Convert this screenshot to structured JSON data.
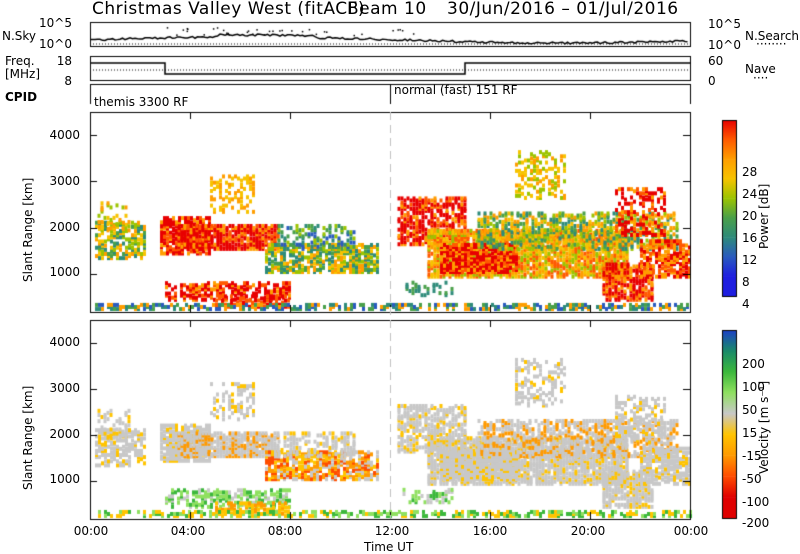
{
  "header": {
    "title": "Christmas Valley West (fitACF)",
    "beam": "Beam 10",
    "date_range": "30/Jun/2016 – 01/Jul/2016"
  },
  "sky_panel": {
    "left_label": "N.Sky",
    "left_ticks": [
      "10^5",
      "10^0"
    ],
    "right_label": "N.Search",
    "right_ticks": [
      "10^5",
      "10^0"
    ],
    "legend_line": "········"
  },
  "freq_panel": {
    "left_label_1": "Freq.",
    "left_label_2": "[MHz]",
    "left_ticks": [
      "18",
      "8"
    ],
    "right_label": "Nave",
    "right_ticks": [
      "60",
      "0"
    ],
    "legend_line": "····"
  },
  "cpid": {
    "label": "CPID",
    "mode_1": "themis 3300 RF",
    "mode_2": "normal (fast) 151 RF"
  },
  "chart_data": [
    {
      "type": "heatmap",
      "name": "power",
      "ylabel": "Slant Range [km]",
      "yticks": [
        1000,
        2000,
        3000,
        4000
      ],
      "ylim": [
        180,
        4500
      ],
      "xlim_hours": [
        0,
        24
      ],
      "colorbar_label": "Power [dB]",
      "colorbar_ticks": [
        "28",
        "24",
        "20",
        "16",
        "12",
        "8",
        "4"
      ],
      "colorbar_colors": [
        "#e80000",
        "#ff5a00",
        "#ff9e00",
        "#f7c300",
        "#9cc400",
        "#4aa04a",
        "#2e8b7a",
        "#2a5bbf",
        "#1e1ee0"
      ]
    },
    {
      "type": "heatmap",
      "name": "velocity",
      "ylabel": "Slant Range [km]",
      "yticks": [
        1000,
        2000,
        3000,
        4000
      ],
      "ylim": [
        180,
        4500
      ],
      "xlim_hours": [
        0,
        24
      ],
      "colorbar_label": "Velocity [m s⁻¹]",
      "colorbar_ticks": [
        "200",
        "100",
        "50",
        "15",
        "-15",
        "-50",
        "-100",
        "-200"
      ],
      "colorbar_colors": [
        "#e00000",
        "#ff4d00",
        "#ff9a00",
        "#ffc400",
        "#c8c8c8",
        "#8fe060",
        "#3cb83c",
        "#1a8a6a",
        "#1c3fc8"
      ]
    }
  ],
  "xaxis": {
    "ticks": [
      "00:00",
      "04:00",
      "08:00",
      "12:00",
      "16:00",
      "20:00",
      "00:00"
    ],
    "label": "Time UT"
  }
}
